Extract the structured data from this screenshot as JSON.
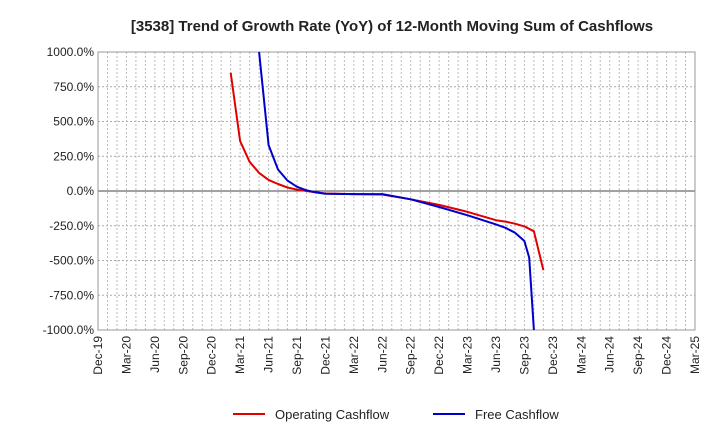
{
  "chart_data": {
    "type": "line",
    "title": "[3538]  Trend of Growth Rate (YoY) of 12-Month Moving Sum of Cashflows",
    "xlabel": "",
    "ylabel": "",
    "ylim": [
      -1000,
      1000
    ],
    "yticks": [
      {
        "value": 1000,
        "label": "1000.0%"
      },
      {
        "value": 750,
        "label": "750.0%"
      },
      {
        "value": 500,
        "label": "500.0%"
      },
      {
        "value": 250,
        "label": "250.0%"
      },
      {
        "value": 0,
        "label": "0.0%"
      },
      {
        "value": -250,
        "label": "-250.0%"
      },
      {
        "value": -500,
        "label": "-500.0%"
      },
      {
        "value": -750,
        "label": "-750.0%"
      },
      {
        "value": -1000,
        "label": "-1000.0%"
      }
    ],
    "xticks": [
      "Dec-19",
      "Mar-20",
      "Jun-20",
      "Sep-20",
      "Dec-20",
      "Mar-21",
      "Jun-21",
      "Sep-21",
      "Dec-21",
      "Mar-22",
      "Jun-22",
      "Sep-22",
      "Dec-22",
      "Mar-23",
      "Jun-23",
      "Sep-23",
      "Dec-23",
      "Mar-24",
      "Jun-24",
      "Sep-24",
      "Dec-24",
      "Mar-25"
    ],
    "grid": true,
    "legend": "bottom",
    "series": [
      {
        "name": "Operating Cashflow",
        "color": "#e00000",
        "points": [
          [
            "Feb-21",
            850
          ],
          [
            "Mar-21",
            360
          ],
          [
            "Apr-21",
            210
          ],
          [
            "May-21",
            130
          ],
          [
            "Jun-21",
            80
          ],
          [
            "Jul-21",
            50
          ],
          [
            "Aug-21",
            25
          ],
          [
            "Sep-21",
            10
          ],
          [
            "Oct-21",
            0
          ],
          [
            "Nov-21",
            -10
          ],
          [
            "Dec-21",
            -18
          ],
          [
            "Mar-22",
            -22
          ],
          [
            "Jun-22",
            -25
          ],
          [
            "Sep-22",
            -60
          ],
          [
            "Dec-22",
            -100
          ],
          [
            "Mar-23",
            -150
          ],
          [
            "May-23",
            -190
          ],
          [
            "Jun-23",
            -210
          ],
          [
            "Jul-23",
            -220
          ],
          [
            "Aug-23",
            -235
          ],
          [
            "Sep-23",
            -255
          ],
          [
            "Oct-23",
            -290
          ],
          [
            "Nov-23",
            -570
          ]
        ]
      },
      {
        "name": "Free Cashflow",
        "color": "#0000cc",
        "points": [
          [
            "May-21",
            1000
          ],
          [
            "Jun-21",
            330
          ],
          [
            "Jul-21",
            155
          ],
          [
            "Aug-21",
            75
          ],
          [
            "Sep-21",
            30
          ],
          [
            "Oct-21",
            5
          ],
          [
            "Nov-21",
            -10
          ],
          [
            "Dec-21",
            -20
          ],
          [
            "Mar-22",
            -22
          ],
          [
            "Jun-22",
            -22
          ],
          [
            "Sep-22",
            -60
          ],
          [
            "Dec-22",
            -115
          ],
          [
            "Mar-23",
            -175
          ],
          [
            "Jun-23",
            -240
          ],
          [
            "Jul-23",
            -265
          ],
          [
            "Aug-23",
            -300
          ],
          [
            "Sep-23",
            -360
          ],
          [
            "Sep-23b",
            -480
          ],
          [
            "Oct-23",
            -1000
          ]
        ]
      }
    ]
  }
}
